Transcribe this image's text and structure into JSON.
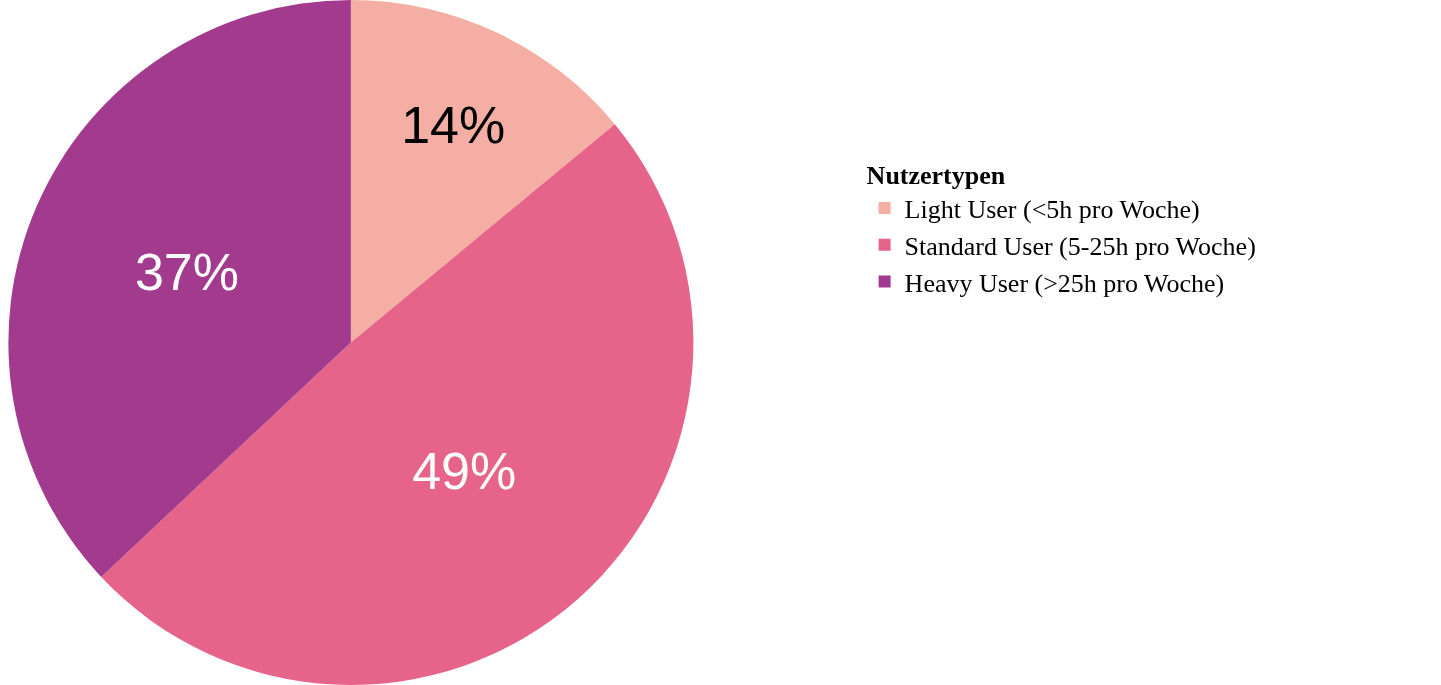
{
  "chart_data": {
    "type": "pie",
    "legend_title": "Nutzertypen",
    "categories": [
      "Light User (<5h pro Woche)",
      "Standard User (5-25h pro Woche)",
      "Heavy User (>25h pro Woche)"
    ],
    "values": [
      14,
      49,
      37
    ],
    "value_labels": [
      "14%",
      "49%",
      "37%"
    ],
    "colors": [
      "#f4aea3",
      "#e6648a",
      "#a23b8e"
    ],
    "legend": "right"
  }
}
